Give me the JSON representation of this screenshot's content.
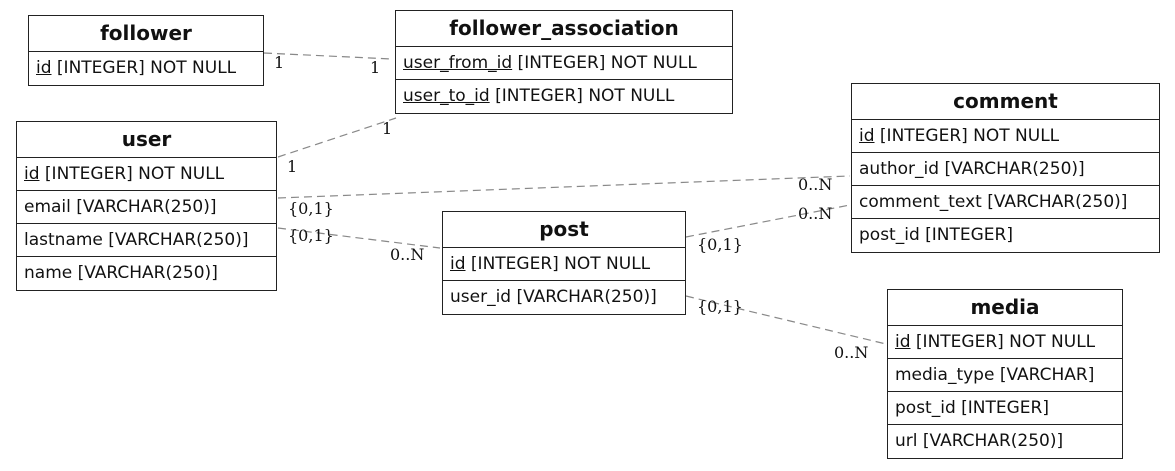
{
  "entities": {
    "follower": {
      "title": "follower",
      "attrs": [
        {
          "key": "id",
          "rest": " [INTEGER] NOT NULL"
        }
      ]
    },
    "follower_association": {
      "title": "follower_association",
      "attrs": [
        {
          "key": "user_from_id",
          "rest": " [INTEGER] NOT NULL"
        },
        {
          "key": "user_to_id",
          "rest": " [INTEGER] NOT NULL"
        }
      ]
    },
    "user": {
      "title": "user",
      "attrs": [
        {
          "key": "id",
          "rest": " [INTEGER] NOT NULL"
        },
        {
          "key": "",
          "rest": "email [VARCHAR(250)]"
        },
        {
          "key": "",
          "rest": "lastname [VARCHAR(250)]"
        },
        {
          "key": "",
          "rest": "name [VARCHAR(250)]"
        }
      ]
    },
    "comment": {
      "title": "comment",
      "attrs": [
        {
          "key": "id",
          "rest": " [INTEGER] NOT NULL"
        },
        {
          "key": "",
          "rest": "author_id [VARCHAR(250)]"
        },
        {
          "key": "",
          "rest": "comment_text [VARCHAR(250)]"
        },
        {
          "key": "",
          "rest": "post_id [INTEGER]"
        }
      ]
    },
    "post": {
      "title": "post",
      "attrs": [
        {
          "key": "id",
          "rest": " [INTEGER] NOT NULL"
        },
        {
          "key": "",
          "rest": "user_id [VARCHAR(250)]"
        }
      ]
    },
    "media": {
      "title": "media",
      "attrs": [
        {
          "key": "id",
          "rest": " [INTEGER] NOT NULL"
        },
        {
          "key": "",
          "rest": "media_type [VARCHAR]"
        },
        {
          "key": "",
          "rest": "post_id [INTEGER]"
        },
        {
          "key": "",
          "rest": "url [VARCHAR(250)]"
        }
      ]
    }
  },
  "relationships": [
    {
      "from": "follower",
      "to": "follower_association",
      "from_card": "1",
      "to_card": "1"
    },
    {
      "from": "user",
      "to": "follower_association",
      "from_card": "1",
      "to_card": "1"
    },
    {
      "from": "user",
      "to": "comment",
      "from_card": "{0,1}",
      "to_card": "0..N"
    },
    {
      "from": "user",
      "to": "post",
      "from_card": "{0,1}",
      "to_card": "0..N"
    },
    {
      "from": "post",
      "to": "comment",
      "from_card": "{0,1}",
      "to_card": "0..N"
    },
    {
      "from": "post",
      "to": "media",
      "from_card": "{0,1}",
      "to_card": "0..N"
    }
  ]
}
